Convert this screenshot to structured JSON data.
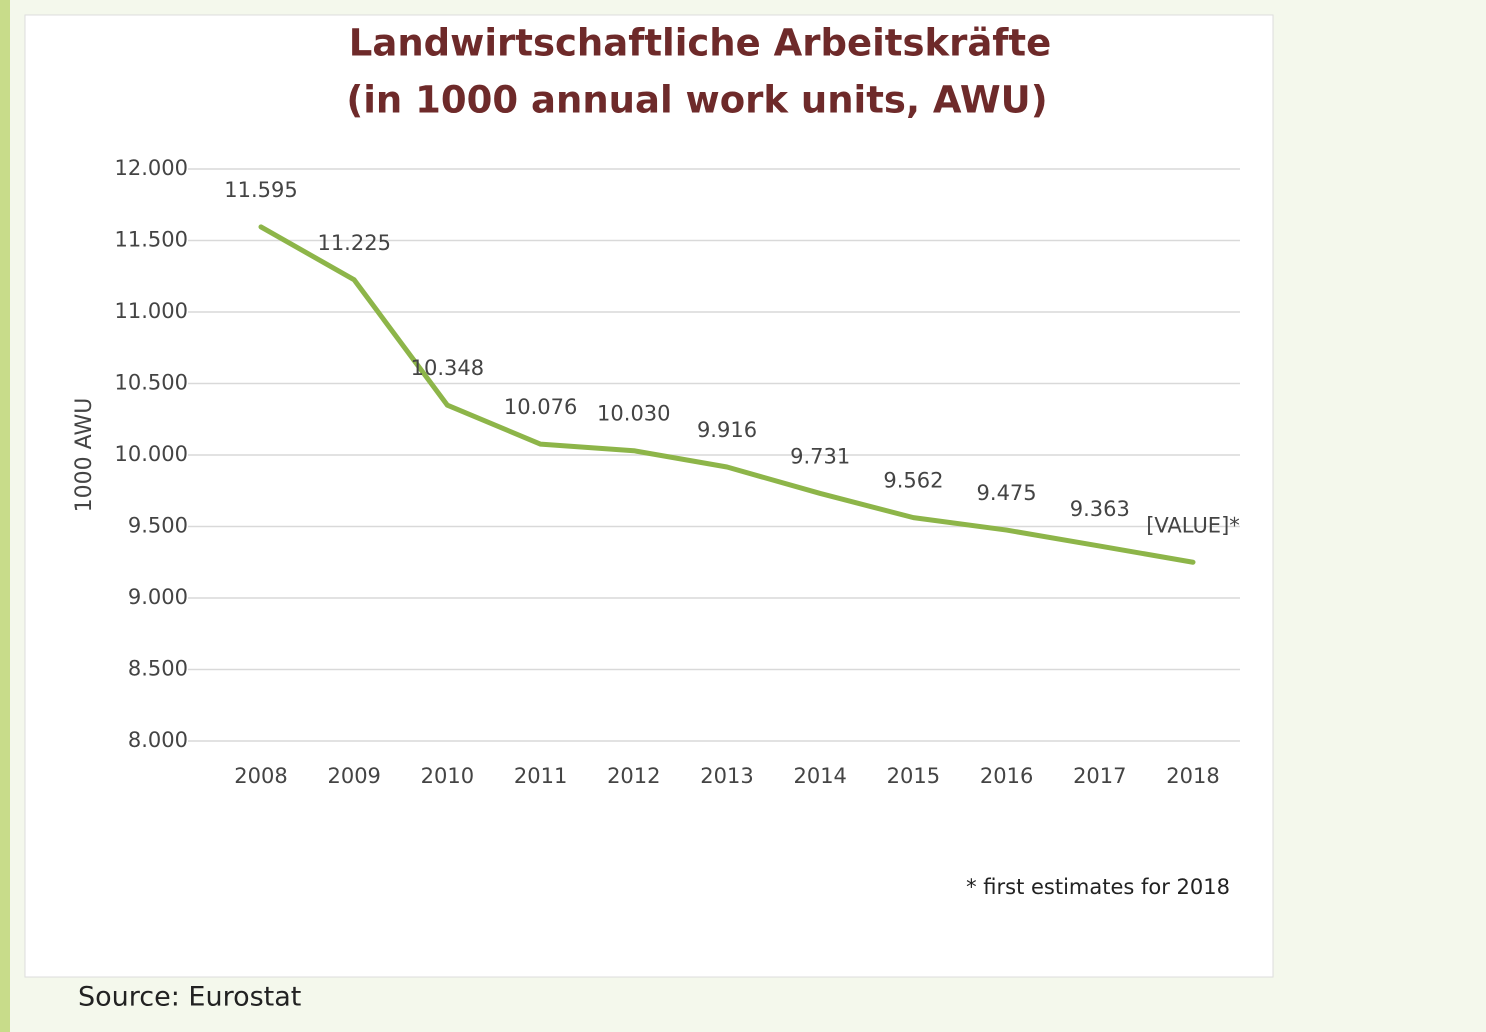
{
  "chart_data": {
    "type": "line",
    "title": "Landwirtschaftliche Arbeitskräfte",
    "subtitle": "(in 1000 annual work units, AWU)",
    "y_label": "1000 AWU",
    "categories": [
      "2008",
      "2009",
      "2010",
      "2011",
      "2012",
      "2013",
      "2014",
      "2015",
      "2016",
      "2017",
      "2018"
    ],
    "series": [
      {
        "name": "AWU",
        "color": "#8db549",
        "values": [
          11595,
          11225,
          10348,
          10076,
          10030,
          9916,
          9731,
          9562,
          9475,
          9363,
          9250
        ],
        "value_labels": [
          "11.595",
          "11.225",
          "10.348",
          "10.076",
          "10.030",
          "9.916",
          "9.731",
          "9.562",
          "9.475",
          "9.363",
          "[VALUE]*"
        ]
      }
    ],
    "ylim": [
      8000,
      12000
    ],
    "yticks": [
      {
        "value": 8000,
        "label": "8.000"
      },
      {
        "value": 8500,
        "label": "8.500"
      },
      {
        "value": 9000,
        "label": "9.000"
      },
      {
        "value": 9500,
        "label": "9.500"
      },
      {
        "value": 10000,
        "label": "10.000"
      },
      {
        "value": 10500,
        "label": "10.500"
      },
      {
        "value": 11000,
        "label": "11.000"
      },
      {
        "value": 11500,
        "label": "11.500"
      },
      {
        "value": 12000,
        "label": "12.000"
      }
    ],
    "grid": true,
    "footnote": "* first estimates for 2018",
    "source": "Source:  Eurostat"
  }
}
